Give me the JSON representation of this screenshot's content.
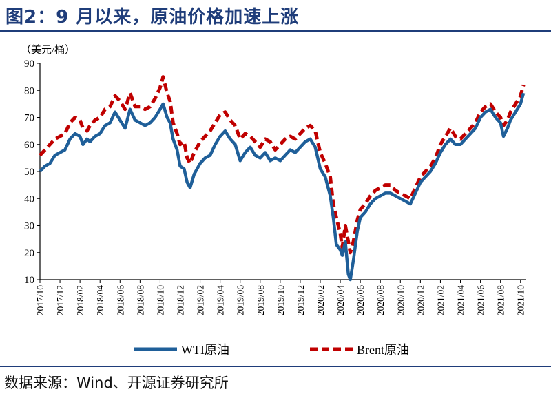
{
  "header": {
    "title": "图2：9 月以来，原油价格加速上涨"
  },
  "footer": {
    "source": "数据来源：Wind、开源证券研究所"
  },
  "colors": {
    "wti": "#1f5f99",
    "brent": "#c00000",
    "title": "#1f3d7a"
  },
  "chart_data": {
    "type": "line",
    "title": "图2：9 月以来，原油价格加速上涨",
    "ylabel": "（美元/桶）",
    "xlabel": "",
    "ylim": [
      10,
      90
    ],
    "yticks": [
      10,
      20,
      30,
      40,
      50,
      60,
      70,
      80,
      90
    ],
    "xlim": [
      0,
      48.5
    ],
    "xticks": [
      {
        "i": 0,
        "label": "2017/10"
      },
      {
        "i": 2,
        "label": "2017/12"
      },
      {
        "i": 4,
        "label": "2018/02"
      },
      {
        "i": 6,
        "label": "2018/04"
      },
      {
        "i": 8,
        "label": "2018/06"
      },
      {
        "i": 10,
        "label": "2018/08"
      },
      {
        "i": 12,
        "label": "2018/10"
      },
      {
        "i": 14,
        "label": "2018/12"
      },
      {
        "i": 16,
        "label": "2019/02"
      },
      {
        "i": 18,
        "label": "2019/04"
      },
      {
        "i": 20,
        "label": "2019/06"
      },
      {
        "i": 22,
        "label": "2019/08"
      },
      {
        "i": 24,
        "label": "2019/10"
      },
      {
        "i": 26,
        "label": "2019/12"
      },
      {
        "i": 28,
        "label": "2020/02"
      },
      {
        "i": 30,
        "label": "2020/04"
      },
      {
        "i": 32,
        "label": "2020/06"
      },
      {
        "i": 34,
        "label": "2020/08"
      },
      {
        "i": 36,
        "label": "2020/10"
      },
      {
        "i": 38,
        "label": "2020/12"
      },
      {
        "i": 40,
        "label": "2021/02"
      },
      {
        "i": 42,
        "label": "2021/04"
      },
      {
        "i": 44,
        "label": "2021/06"
      },
      {
        "i": 46,
        "label": "2021/08"
      },
      {
        "i": 48,
        "label": "2021/10"
      }
    ],
    "legend": {
      "position": "bottom"
    },
    "series": [
      {
        "name": "WTI原油",
        "style": "solid",
        "points": [
          [
            0,
            50
          ],
          [
            0.5,
            52
          ],
          [
            1,
            53
          ],
          [
            1.5,
            56
          ],
          [
            2,
            57
          ],
          [
            2.5,
            58
          ],
          [
            3,
            62
          ],
          [
            3.5,
            64
          ],
          [
            4,
            63
          ],
          [
            4.3,
            60
          ],
          [
            4.7,
            62
          ],
          [
            5,
            61
          ],
          [
            5.5,
            63
          ],
          [
            6,
            64
          ],
          [
            6.5,
            67
          ],
          [
            7,
            68
          ],
          [
            7.5,
            72
          ],
          [
            8,
            69
          ],
          [
            8.5,
            66
          ],
          [
            9,
            73
          ],
          [
            9.5,
            69
          ],
          [
            10,
            68
          ],
          [
            10.5,
            67
          ],
          [
            11,
            68
          ],
          [
            11.5,
            70
          ],
          [
            12,
            73
          ],
          [
            12.3,
            75
          ],
          [
            12.7,
            70
          ],
          [
            13,
            68
          ],
          [
            13.3,
            62
          ],
          [
            13.7,
            58
          ],
          [
            14,
            52
          ],
          [
            14.4,
            51
          ],
          [
            14.7,
            46
          ],
          [
            15,
            44
          ],
          [
            15.4,
            49
          ],
          [
            16,
            53
          ],
          [
            16.5,
            55
          ],
          [
            17,
            56
          ],
          [
            17.5,
            60
          ],
          [
            18,
            63
          ],
          [
            18.5,
            65
          ],
          [
            19,
            62
          ],
          [
            19.5,
            60
          ],
          [
            20,
            54
          ],
          [
            20.5,
            57
          ],
          [
            21,
            59
          ],
          [
            21.5,
            56
          ],
          [
            22,
            55
          ],
          [
            22.5,
            57
          ],
          [
            23,
            54
          ],
          [
            23.5,
            55
          ],
          [
            24,
            54
          ],
          [
            24.5,
            56
          ],
          [
            25,
            58
          ],
          [
            25.5,
            57
          ],
          [
            26,
            59
          ],
          [
            26.5,
            61
          ],
          [
            27,
            62
          ],
          [
            27.5,
            59
          ],
          [
            28,
            51
          ],
          [
            28.5,
            48
          ],
          [
            29,
            41
          ],
          [
            29.3,
            33
          ],
          [
            29.6,
            23
          ],
          [
            30,
            21
          ],
          [
            30.2,
            19
          ],
          [
            30.5,
            24
          ],
          [
            30.8,
            12
          ],
          [
            31,
            10
          ],
          [
            31.3,
            17
          ],
          [
            31.7,
            28
          ],
          [
            32,
            33
          ],
          [
            32.5,
            35
          ],
          [
            33,
            38
          ],
          [
            33.5,
            40
          ],
          [
            34,
            41
          ],
          [
            34.5,
            42
          ],
          [
            35,
            42
          ],
          [
            35.5,
            41
          ],
          [
            36,
            40
          ],
          [
            36.5,
            39
          ],
          [
            37,
            38
          ],
          [
            37.5,
            42
          ],
          [
            38,
            46
          ],
          [
            38.5,
            48
          ],
          [
            39,
            50
          ],
          [
            39.5,
            53
          ],
          [
            40,
            57
          ],
          [
            40.5,
            60
          ],
          [
            41,
            62
          ],
          [
            41.5,
            60
          ],
          [
            42,
            60
          ],
          [
            42.5,
            62
          ],
          [
            43,
            64
          ],
          [
            43.5,
            66
          ],
          [
            44,
            70
          ],
          [
            44.5,
            72
          ],
          [
            45,
            73
          ],
          [
            45.5,
            70
          ],
          [
            46,
            68
          ],
          [
            46.3,
            63
          ],
          [
            46.7,
            66
          ],
          [
            47,
            69
          ],
          [
            47.5,
            72
          ],
          [
            48,
            75
          ],
          [
            48.3,
            79
          ]
        ]
      },
      {
        "name": "Brent原油",
        "style": "dashed",
        "points": [
          [
            0,
            56
          ],
          [
            0.5,
            58
          ],
          [
            1,
            60
          ],
          [
            1.5,
            62
          ],
          [
            2,
            63
          ],
          [
            2.5,
            64
          ],
          [
            3,
            68
          ],
          [
            3.5,
            70
          ],
          [
            4,
            69
          ],
          [
            4.3,
            66
          ],
          [
            4.7,
            65
          ],
          [
            5,
            67
          ],
          [
            5.5,
            69
          ],
          [
            6,
            70
          ],
          [
            6.5,
            73
          ],
          [
            7,
            74
          ],
          [
            7.5,
            78
          ],
          [
            8,
            76
          ],
          [
            8.5,
            73
          ],
          [
            9,
            79
          ],
          [
            9.5,
            74
          ],
          [
            10,
            74
          ],
          [
            10.5,
            73
          ],
          [
            11,
            74
          ],
          [
            11.5,
            77
          ],
          [
            12,
            81
          ],
          [
            12.3,
            85
          ],
          [
            12.7,
            79
          ],
          [
            13,
            76
          ],
          [
            13.3,
            68
          ],
          [
            13.7,
            64
          ],
          [
            14,
            60
          ],
          [
            14.4,
            61
          ],
          [
            14.7,
            55
          ],
          [
            15,
            53
          ],
          [
            15.4,
            57
          ],
          [
            16,
            61
          ],
          [
            16.5,
            63
          ],
          [
            17,
            65
          ],
          [
            17.5,
            68
          ],
          [
            18,
            71
          ],
          [
            18.5,
            72
          ],
          [
            19,
            69
          ],
          [
            19.5,
            67
          ],
          [
            20,
            62
          ],
          [
            20.5,
            64
          ],
          [
            21,
            63
          ],
          [
            21.5,
            61
          ],
          [
            22,
            59
          ],
          [
            22.5,
            62
          ],
          [
            23,
            61
          ],
          [
            23.5,
            58
          ],
          [
            24,
            60
          ],
          [
            24.5,
            62
          ],
          [
            25,
            63
          ],
          [
            25.5,
            62
          ],
          [
            26,
            64
          ],
          [
            26.5,
            66
          ],
          [
            27,
            67
          ],
          [
            27.5,
            65
          ],
          [
            28,
            57
          ],
          [
            28.5,
            53
          ],
          [
            29,
            48
          ],
          [
            29.3,
            38
          ],
          [
            29.6,
            33
          ],
          [
            30,
            27
          ],
          [
            30.2,
            22
          ],
          [
            30.5,
            30
          ],
          [
            30.8,
            24
          ],
          [
            31,
            20
          ],
          [
            31.3,
            24
          ],
          [
            31.7,
            32
          ],
          [
            32,
            36
          ],
          [
            32.5,
            38
          ],
          [
            33,
            41
          ],
          [
            33.5,
            43
          ],
          [
            34,
            44
          ],
          [
            34.5,
            45
          ],
          [
            35,
            45
          ],
          [
            35.5,
            43
          ],
          [
            36,
            42
          ],
          [
            36.5,
            41
          ],
          [
            37,
            40
          ],
          [
            37.5,
            44
          ],
          [
            38,
            48
          ],
          [
            38.5,
            50
          ],
          [
            39,
            52
          ],
          [
            39.5,
            55
          ],
          [
            40,
            60
          ],
          [
            40.5,
            63
          ],
          [
            41,
            66
          ],
          [
            41.5,
            63
          ],
          [
            42,
            62
          ],
          [
            42.5,
            64
          ],
          [
            43,
            66
          ],
          [
            43.5,
            68
          ],
          [
            44,
            72
          ],
          [
            44.5,
            74
          ],
          [
            45,
            75
          ],
          [
            45.5,
            72
          ],
          [
            46,
            70
          ],
          [
            46.3,
            67
          ],
          [
            46.7,
            69
          ],
          [
            47,
            72
          ],
          [
            47.5,
            75
          ],
          [
            48,
            78
          ],
          [
            48.3,
            82
          ]
        ]
      }
    ]
  }
}
